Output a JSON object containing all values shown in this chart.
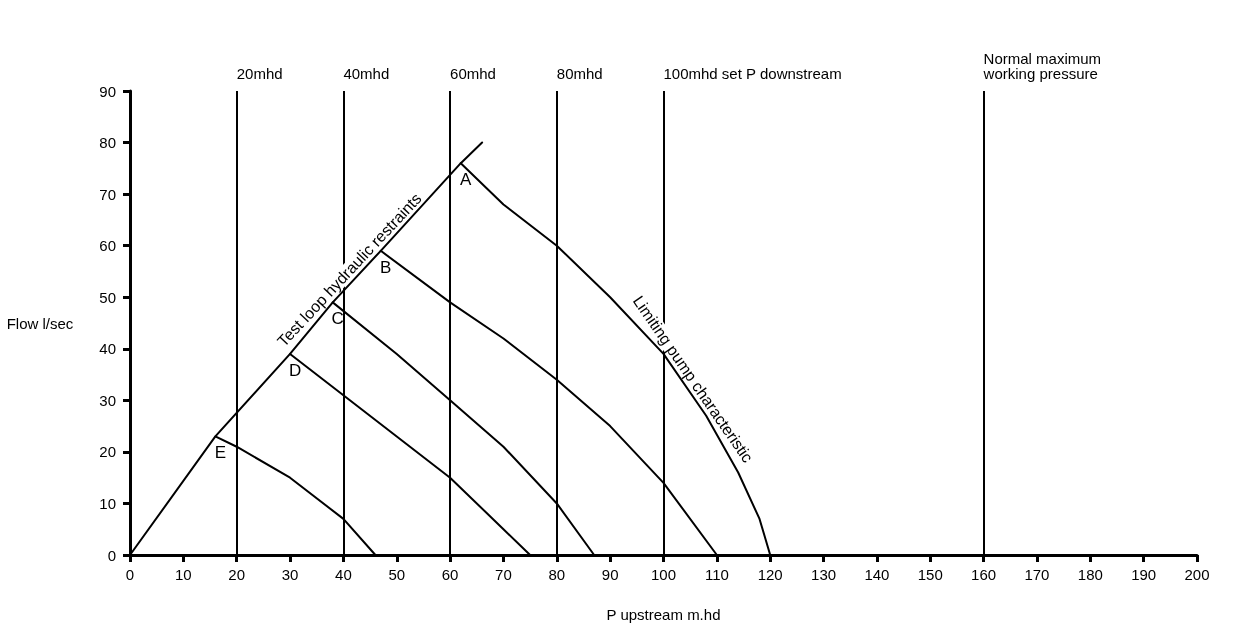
{
  "chart_data": {
    "type": "line",
    "xlabel": "P upstream m.hd",
    "ylabel": "Flow l/sec",
    "xlim": [
      0,
      200
    ],
    "xticks": [
      0,
      10,
      20,
      30,
      40,
      50,
      60,
      70,
      80,
      90,
      100,
      110,
      120,
      130,
      140,
      150,
      160,
      170,
      180,
      190,
      200
    ],
    "ylim": [
      0,
      90
    ],
    "yticks": [
      0,
      10,
      20,
      30,
      40,
      50,
      60,
      70,
      80,
      90
    ],
    "grid": false,
    "legend": false,
    "marker": "none",
    "line_style": "solid",
    "series": [
      {
        "name": "Test loop hydraulic restraints",
        "color": "#000000",
        "x": [
          0,
          16,
          30,
          38,
          47,
          62,
          66
        ],
        "values": [
          0,
          23,
          39,
          49,
          59,
          76,
          80
        ]
      },
      {
        "name": "Limiting pump characteristic",
        "color": "#000000",
        "x": [
          62,
          70,
          80,
          90,
          100,
          108,
          114,
          118,
          120
        ],
        "values": [
          76,
          68,
          60,
          50,
          39,
          27,
          16,
          7,
          0
        ]
      },
      {
        "color": "#000000",
        "x": [
          47,
          60,
          70,
          80,
          90,
          100,
          110
        ],
        "values": [
          59,
          49,
          42,
          34,
          25,
          14,
          0
        ]
      },
      {
        "color": "#000000",
        "x": [
          38,
          50,
          60,
          70,
          80,
          87
        ],
        "values": [
          49,
          39,
          30,
          21,
          10,
          0
        ]
      },
      {
        "color": "#000000",
        "x": [
          30,
          40,
          50,
          60,
          70,
          75
        ],
        "values": [
          39,
          31,
          23,
          15,
          5,
          0
        ]
      },
      {
        "color": "#000000",
        "x": [
          16,
          20,
          30,
          40,
          46
        ],
        "values": [
          23,
          21,
          15,
          7,
          0
        ]
      }
    ],
    "ref_lines": [
      {
        "axis": "x",
        "value": 20,
        "label": "20mhd",
        "color": "#000000"
      },
      {
        "axis": "x",
        "value": 40,
        "label": "40mhd",
        "color": "#000000"
      },
      {
        "axis": "x",
        "value": 60,
        "label": "60mhd",
        "color": "#000000"
      },
      {
        "axis": "x",
        "value": 80,
        "label": "80mhd",
        "color": "#000000"
      },
      {
        "axis": "x",
        "value": 100,
        "label": "100mhd set P downstream",
        "color": "#000000"
      },
      {
        "axis": "x",
        "value": 160,
        "label": "Normal maximum\nworking pressure",
        "color": "#000000"
      }
    ],
    "annotations": [
      {
        "text": "A",
        "x": 62,
        "y": 76
      },
      {
        "text": "B",
        "x": 47,
        "y": 59
      },
      {
        "text": "C",
        "x": 38,
        "y": 49
      },
      {
        "text": "D",
        "x": 30,
        "y": 39
      },
      {
        "text": "E",
        "x": 16,
        "y": 23
      }
    ]
  }
}
